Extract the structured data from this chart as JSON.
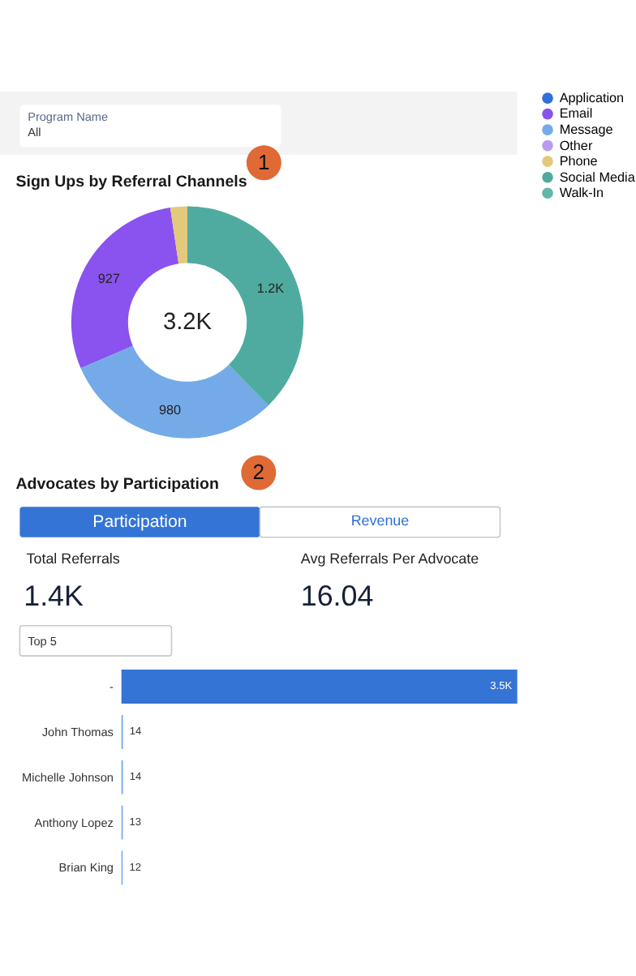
{
  "chart_data": [
    {
      "type": "donut",
      "title": "Sign Ups by Referral Channels",
      "categories": [
        "Application",
        "Email",
        "Message",
        "Other",
        "Phone",
        "Social Media",
        "Walk-In"
      ],
      "values": [
        0,
        927,
        980,
        0,
        75,
        1200,
        0
      ],
      "value_labels": [
        null,
        "927",
        "980",
        null,
        null,
        "1.2K",
        null
      ],
      "colors": [
        "#2e6fd8",
        "#8a52ee",
        "#74aae8",
        "#b99cf0",
        "#e3c97b",
        "#4fab9f",
        "#5fb8ab"
      ],
      "legend": "right",
      "annotations": [
        "Program Name",
        "All",
        "1",
        "3.2K"
      ]
    },
    {
      "type": "other",
      "title": "Advocates by Participation",
      "annotations": [
        "2",
        "Participation",
        "Revenue",
        "Total Referrals",
        "1.4K",
        "Avg Referrals Per Advocate",
        "16.04",
        "Top 5"
      ]
    },
    {
      "type": "bar",
      "orientation": "horizontal",
      "categories": [
        "-",
        "John Thomas",
        "Michelle Johnson",
        "Anthony Lopez",
        "Brian King"
      ],
      "values": [
        3500,
        14,
        14,
        13,
        12
      ],
      "value_labels": [
        "3.5K",
        "14",
        "14",
        "13",
        "12"
      ],
      "colors": [
        "#3474d4",
        "#7aaee8",
        "#7aaee8",
        "#7aaee8",
        "#7aaee8"
      ],
      "tick_labels": "y"
    }
  ]
}
